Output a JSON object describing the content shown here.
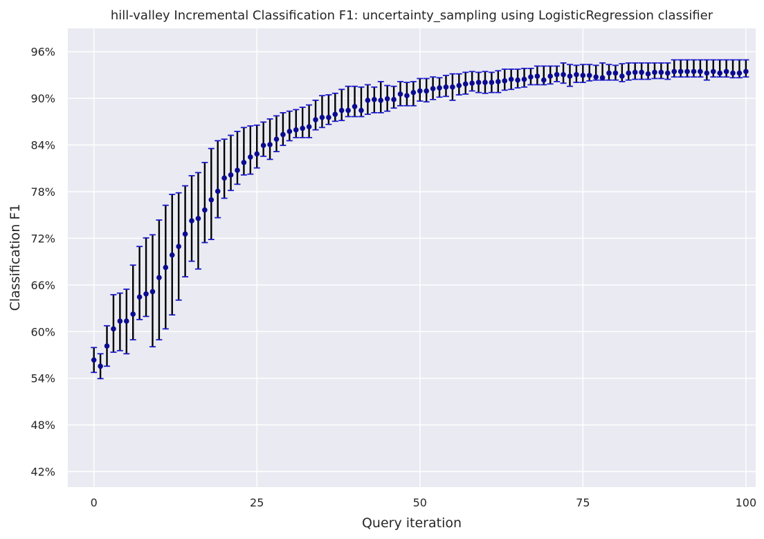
{
  "chart_data": {
    "type": "scatter",
    "title": "hill-valley Incremental Classification F1: uncertainty_sampling using LogisticRegression classifier",
    "xlabel": "Query iteration",
    "ylabel": "Classification F1",
    "xlim": [
      -4,
      101.5
    ],
    "ylim": [
      0.4,
      0.99
    ],
    "xticks": [
      0,
      25,
      50,
      75,
      100
    ],
    "yticks": [
      0.42,
      0.48,
      0.54,
      0.6,
      0.66,
      0.72,
      0.78,
      0.84,
      0.9,
      0.96
    ],
    "ytick_labels": [
      "42%",
      "48%",
      "54%",
      "60%",
      "66%",
      "72%",
      "78%",
      "84%",
      "90%",
      "96%"
    ],
    "grid": true,
    "point_color": "#0b0b8f",
    "errorbar_color": "#000000",
    "errorcap_color": "#1a1acc",
    "background": "#eaeaf2",
    "x": [
      0,
      1,
      2,
      3,
      4,
      5,
      6,
      7,
      8,
      9,
      10,
      11,
      12,
      13,
      14,
      15,
      16,
      17,
      18,
      19,
      20,
      21,
      22,
      23,
      24,
      25,
      26,
      27,
      28,
      29,
      30,
      31,
      32,
      33,
      34,
      35,
      36,
      37,
      38,
      39,
      40,
      41,
      42,
      43,
      44,
      45,
      46,
      47,
      48,
      49,
      50,
      51,
      52,
      53,
      54,
      55,
      56,
      57,
      58,
      59,
      60,
      61,
      62,
      63,
      64,
      65,
      66,
      67,
      68,
      69,
      70,
      71,
      72,
      73,
      74,
      75,
      76,
      77,
      78,
      79,
      80,
      81,
      82,
      83,
      84,
      85,
      86,
      87,
      88,
      89,
      90,
      91,
      92,
      93,
      94,
      95,
      96,
      97,
      98,
      99,
      100
    ],
    "y": [
      0.5635,
      0.5555,
      0.5815,
      0.6035,
      0.6135,
      0.6135,
      0.6225,
      0.6445,
      0.6485,
      0.6515,
      0.6695,
      0.6825,
      0.6985,
      0.7095,
      0.7255,
      0.7425,
      0.7455,
      0.7565,
      0.7695,
      0.7805,
      0.7975,
      0.8015,
      0.8075,
      0.8175,
      0.8245,
      0.8285,
      0.8395,
      0.8405,
      0.8475,
      0.8535,
      0.8575,
      0.8595,
      0.8615,
      0.8635,
      0.8725,
      0.8755,
      0.8755,
      0.8795,
      0.8845,
      0.8845,
      0.8895,
      0.8845,
      0.8975,
      0.8985,
      0.8975,
      0.8995,
      0.8985,
      0.9055,
      0.9035,
      0.9075,
      0.9095,
      0.9095,
      0.9125,
      0.9135,
      0.9145,
      0.9145,
      0.9165,
      0.9185,
      0.9195,
      0.9205,
      0.9205,
      0.9205,
      0.9215,
      0.9225,
      0.9245,
      0.9235,
      0.9245,
      0.9275,
      0.9285,
      0.9235,
      0.9285,
      0.9305,
      0.9305,
      0.9285,
      0.9305,
      0.9295,
      0.9295,
      0.9275,
      0.9265,
      0.9325,
      0.9325,
      0.9285,
      0.9325,
      0.9335,
      0.9335,
      0.9315,
      0.9335,
      0.9335,
      0.9325,
      0.9345,
      0.9345,
      0.9345,
      0.9345,
      0.9345,
      0.9325,
      0.9345,
      0.9325,
      0.9345,
      0.9325,
      0.9325,
      0.9345
    ],
    "y_low": [
      0.5475,
      0.5395,
      0.5555,
      0.5735,
      0.5755,
      0.5715,
      0.5895,
      0.6155,
      0.6195,
      0.5805,
      0.5895,
      0.6035,
      0.6215,
      0.6405,
      0.6705,
      0.6905,
      0.6805,
      0.7145,
      0.7185,
      0.7465,
      0.7715,
      0.7815,
      0.7895,
      0.8015,
      0.8025,
      0.8105,
      0.8255,
      0.8215,
      0.8315,
      0.8395,
      0.8455,
      0.8495,
      0.8495,
      0.8495,
      0.8595,
      0.8625,
      0.8665,
      0.8705,
      0.8715,
      0.8765,
      0.8765,
      0.8765,
      0.8795,
      0.8815,
      0.8815,
      0.8835,
      0.8875,
      0.8905,
      0.8905,
      0.8905,
      0.8965,
      0.8955,
      0.8985,
      0.9015,
      0.9025,
      0.8975,
      0.9045,
      0.9055,
      0.9095,
      0.9075,
      0.9065,
      0.9075,
      0.9075,
      0.9105,
      0.9115,
      0.9135,
      0.9145,
      0.9175,
      0.9175,
      0.9175,
      0.9185,
      0.9215,
      0.9195,
      0.9155,
      0.9205,
      0.9205,
      0.9225,
      0.9235,
      0.9235,
      0.9235,
      0.9235,
      0.9215,
      0.9235,
      0.9245,
      0.9245,
      0.9245,
      0.9255,
      0.9255,
      0.9245,
      0.9275,
      0.9275,
      0.9275,
      0.9275,
      0.9275,
      0.9235,
      0.9275,
      0.9275,
      0.9275,
      0.9265,
      0.9265,
      0.9275
    ],
    "y_high": [
      0.5795,
      0.5715,
      0.6075,
      0.6475,
      0.6495,
      0.6545,
      0.6855,
      0.7095,
      0.7205,
      0.7245,
      0.7435,
      0.7625,
      0.7765,
      0.7785,
      0.7875,
      0.8005,
      0.8045,
      0.8175,
      0.8355,
      0.8455,
      0.8475,
      0.8525,
      0.8575,
      0.8625,
      0.8645,
      0.8655,
      0.8695,
      0.8735,
      0.8775,
      0.8815,
      0.8835,
      0.8855,
      0.8885,
      0.8915,
      0.8975,
      0.9035,
      0.9045,
      0.9065,
      0.9115,
      0.9155,
      0.9155,
      0.9145,
      0.9175,
      0.9145,
      0.9215,
      0.9165,
      0.9155,
      0.9215,
      0.9205,
      0.9215,
      0.9255,
      0.9255,
      0.9275,
      0.9265,
      0.9295,
      0.9315,
      0.9315,
      0.9335,
      0.9345,
      0.9335,
      0.9345,
      0.9335,
      0.9355,
      0.9375,
      0.9375,
      0.9375,
      0.9385,
      0.9385,
      0.9415,
      0.9415,
      0.9415,
      0.9415,
      0.9455,
      0.9435,
      0.9425,
      0.9435,
      0.9435,
      0.9425,
      0.9455,
      0.9435,
      0.9425,
      0.9445,
      0.9455,
      0.9455,
      0.9455,
      0.9455,
      0.9455,
      0.9455,
      0.9455,
      0.9495,
      0.9495,
      0.9495,
      0.9495,
      0.9495,
      0.9495,
      0.9495,
      0.9495,
      0.9495,
      0.9495,
      0.9495,
      0.9495
    ]
  }
}
